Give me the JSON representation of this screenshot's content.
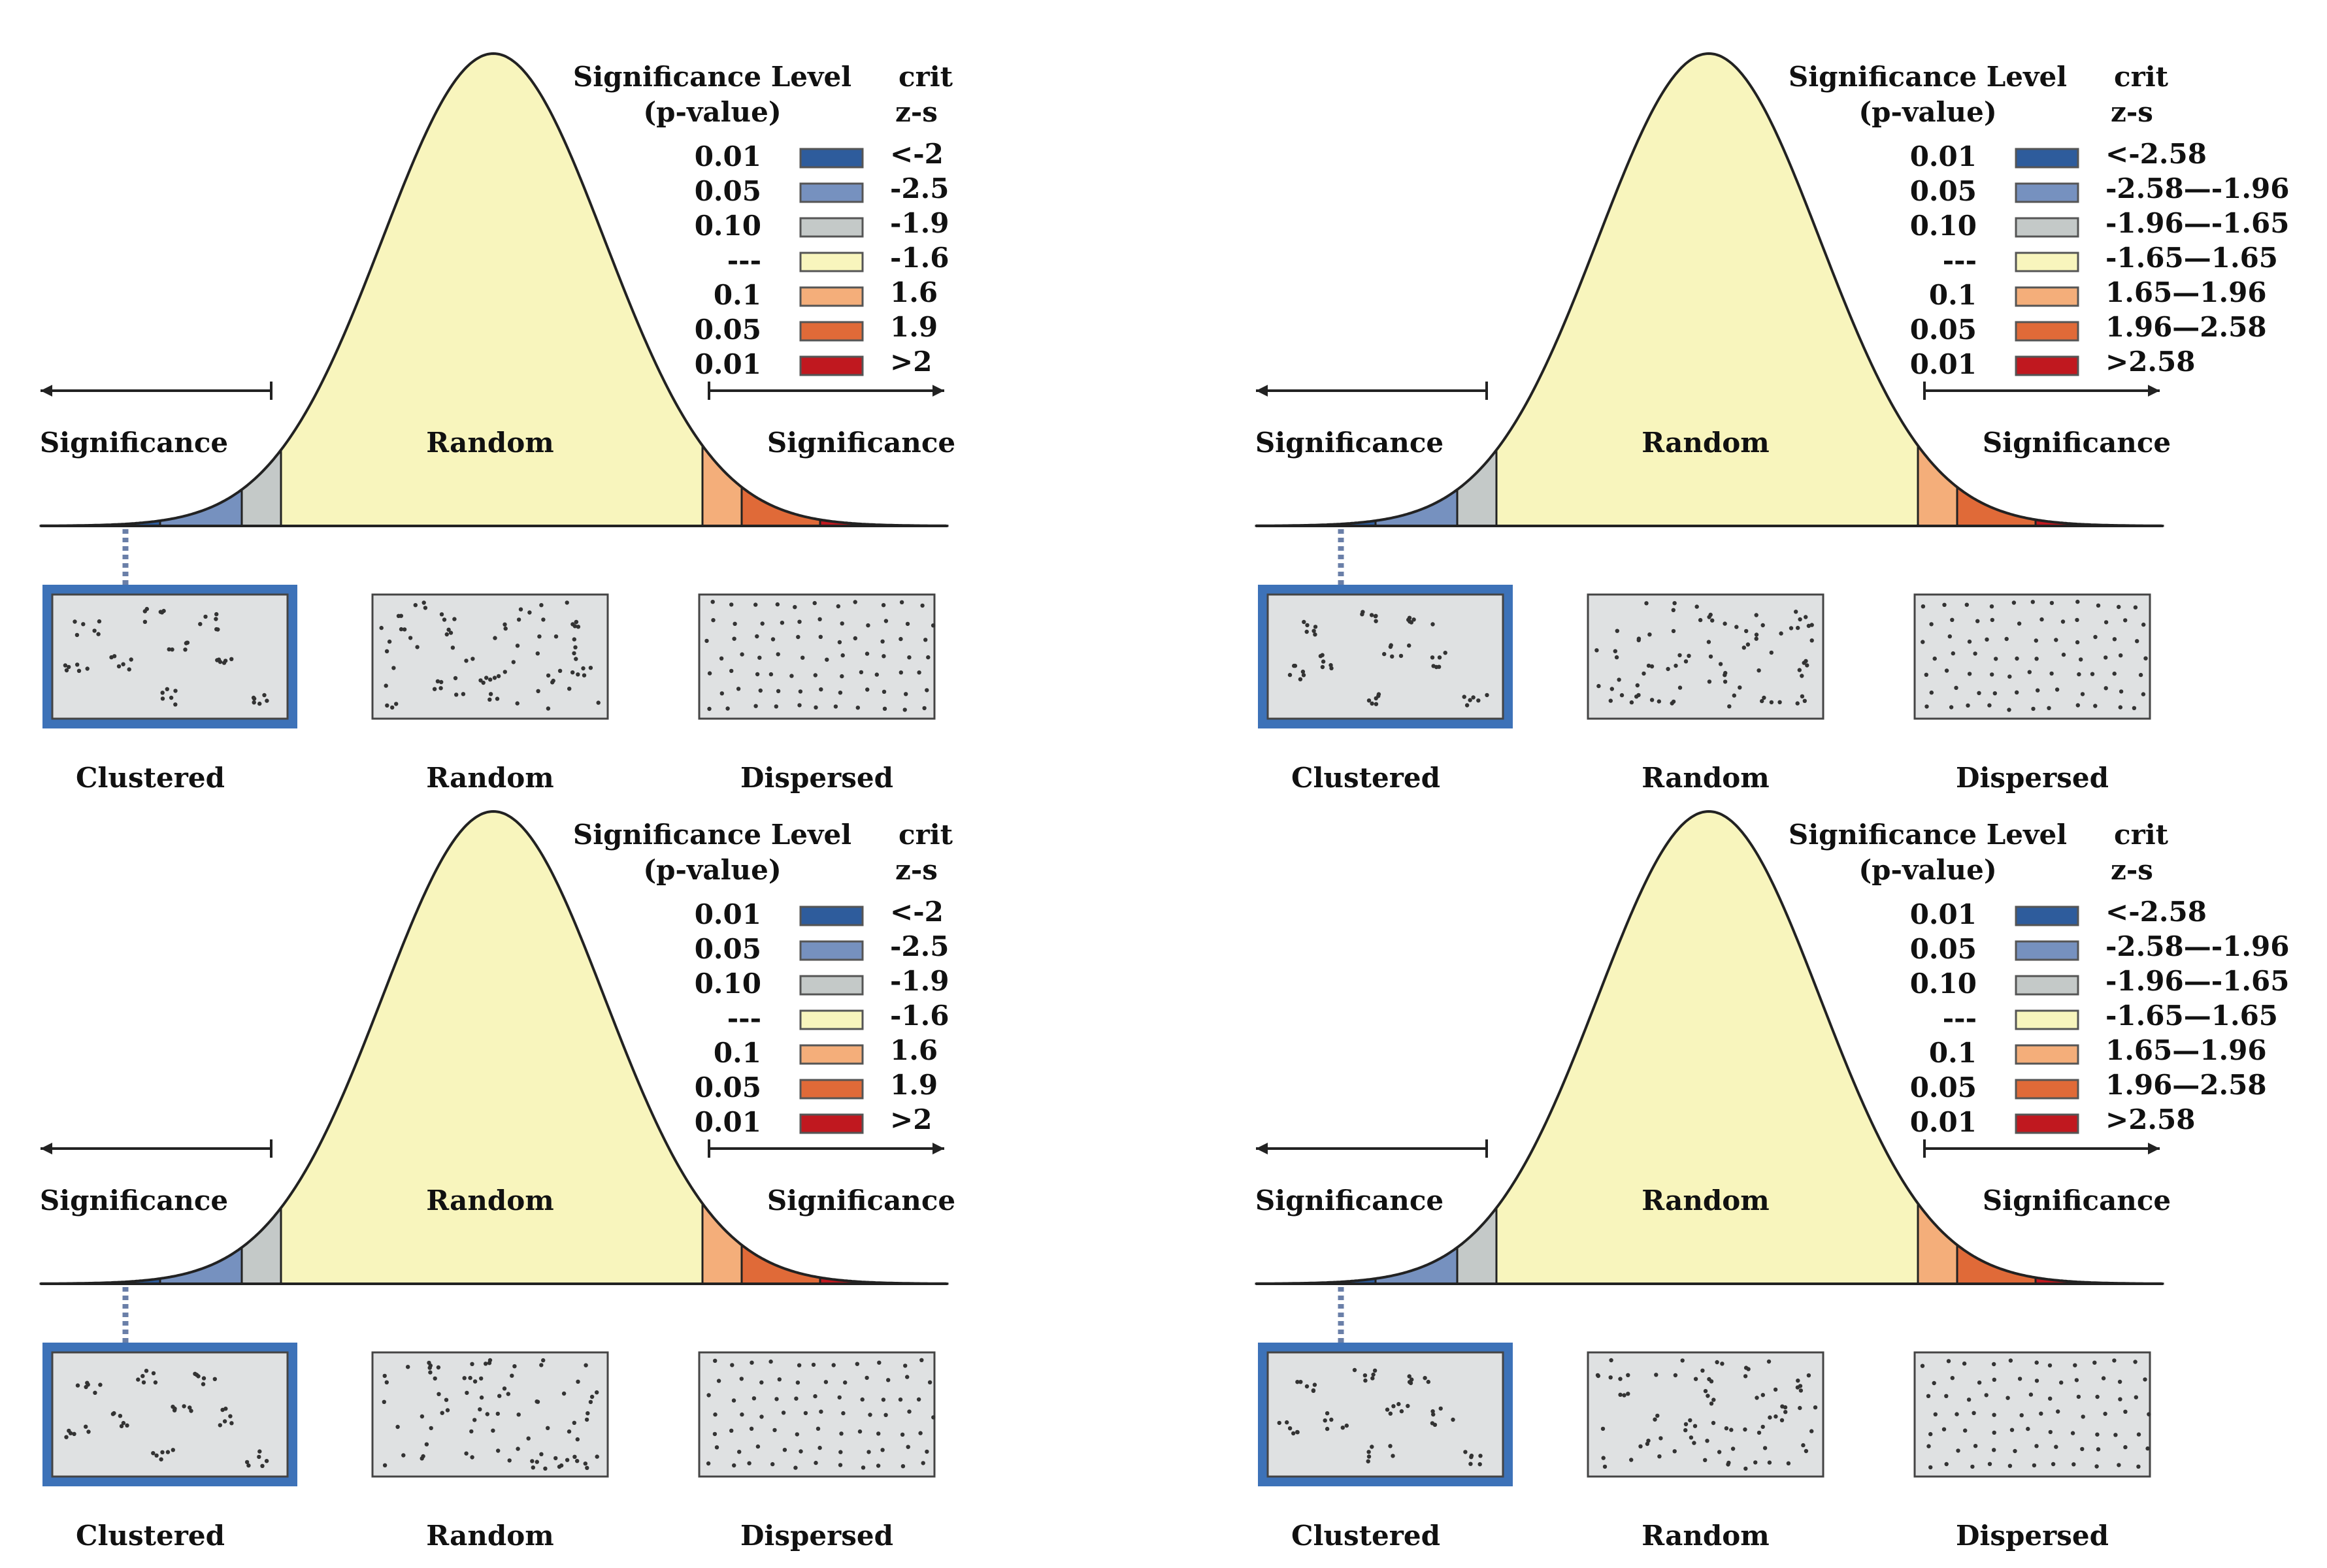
{
  "colors": {
    "curve_fill": "#f8f5bd",
    "outline": "#222222",
    "blue_dark": "#2e5c9c",
    "blue_mid": "#7691bf",
    "grey_light": "#c4c9c8",
    "pale_yellow": "#f8f5bd",
    "orange_light": "#f4ae7a",
    "orange_mid": "#e06a38",
    "red": "#c0181f",
    "box_fill": "#dfe1e2",
    "box_border": "#3d72b8"
  },
  "panels": [
    {
      "legend": {
        "title": "Significance Level",
        "subtitle": "(p-value)",
        "crit_title": "crit",
        "crit_subtitle": "z-s",
        "rows": [
          {
            "p": "0.01",
            "color": "#2e5c9c",
            "z": "<-2"
          },
          {
            "p": "0.05",
            "color": "#7691bf",
            "z": "-2.5"
          },
          {
            "p": "0.10",
            "color": "#c4c9c8",
            "z": "-1.9"
          },
          {
            "p": "---",
            "color": "#f8f5bd",
            "z": "-1.6"
          },
          {
            "p": "0.1",
            "color": "#f4ae7a",
            "z": "1.6"
          },
          {
            "p": "0.05",
            "color": "#e06a38",
            "z": "1.9"
          },
          {
            "p": "0.01",
            "color": "#c0181f",
            "z": ">2"
          }
        ]
      },
      "labels": {
        "left_significance": "Significance",
        "center_random": "Random",
        "right_significance": "Significance",
        "clustered": "Clustered",
        "random": "Random",
        "dispersed": "Dispersed"
      }
    },
    {
      "legend": {
        "title": "Significance Level",
        "subtitle": "(p-value)",
        "crit_title": "crit",
        "crit_subtitle": "z-s",
        "rows": [
          {
            "p": "0.01",
            "color": "#2e5c9c",
            "z": "<-2.58"
          },
          {
            "p": "0.05",
            "color": "#7691bf",
            "z": "-2.58—-1.96"
          },
          {
            "p": "0.10",
            "color": "#c4c9c8",
            "z": "-1.96—-1.65"
          },
          {
            "p": "---",
            "color": "#f8f5bd",
            "z": "-1.65—1.65"
          },
          {
            "p": "0.1",
            "color": "#f4ae7a",
            "z": "1.65—1.96"
          },
          {
            "p": "0.05",
            "color": "#e06a38",
            "z": "1.96—2.58"
          },
          {
            "p": "0.01",
            "color": "#c0181f",
            "z": ">2.58"
          }
        ]
      },
      "labels": {
        "left_significance": "Significance",
        "center_random": "Random",
        "right_significance": "Significance",
        "clustered": "Clustered",
        "random": "Random",
        "dispersed": "Dispersed"
      }
    },
    {
      "legend": {
        "title": "Significance Level",
        "subtitle": "(p-value)",
        "crit_title": "crit",
        "crit_subtitle": "z-s",
        "rows": [
          {
            "p": "0.01",
            "color": "#2e5c9c",
            "z": "<-2"
          },
          {
            "p": "0.05",
            "color": "#7691bf",
            "z": "-2.5"
          },
          {
            "p": "0.10",
            "color": "#c4c9c8",
            "z": "-1.9"
          },
          {
            "p": "---",
            "color": "#f8f5bd",
            "z": "-1.6"
          },
          {
            "p": "0.1",
            "color": "#f4ae7a",
            "z": "1.6"
          },
          {
            "p": "0.05",
            "color": "#e06a38",
            "z": "1.9"
          },
          {
            "p": "0.01",
            "color": "#c0181f",
            "z": ">2"
          }
        ]
      },
      "labels": {
        "left_significance": "Significance",
        "center_random": "Random",
        "right_significance": "Significance",
        "clustered": "Clustered",
        "random": "Random",
        "dispersed": "Dispersed"
      }
    },
    {
      "legend": {
        "title": "Significance Level",
        "subtitle": "(p-value)",
        "crit_title": "crit",
        "crit_subtitle": "z-s",
        "rows": [
          {
            "p": "0.01",
            "color": "#2e5c9c",
            "z": "<-2.58"
          },
          {
            "p": "0.05",
            "color": "#7691bf",
            "z": "-2.58—-1.96"
          },
          {
            "p": "0.10",
            "color": "#c4c9c8",
            "z": "-1.96—-1.65"
          },
          {
            "p": "---",
            "color": "#f8f5bd",
            "z": "-1.65—1.65"
          },
          {
            "p": "0.1",
            "color": "#f4ae7a",
            "z": "1.65—1.96"
          },
          {
            "p": "0.05",
            "color": "#e06a38",
            "z": "1.96—2.58"
          },
          {
            "p": "0.01",
            "color": "#c0181f",
            "z": ">2.58"
          }
        ]
      },
      "labels": {
        "left_significance": "Significance",
        "center_random": "Random",
        "right_significance": "Significance",
        "clustered": "Clustered",
        "random": "Random",
        "dispersed": "Dispersed"
      }
    }
  ]
}
